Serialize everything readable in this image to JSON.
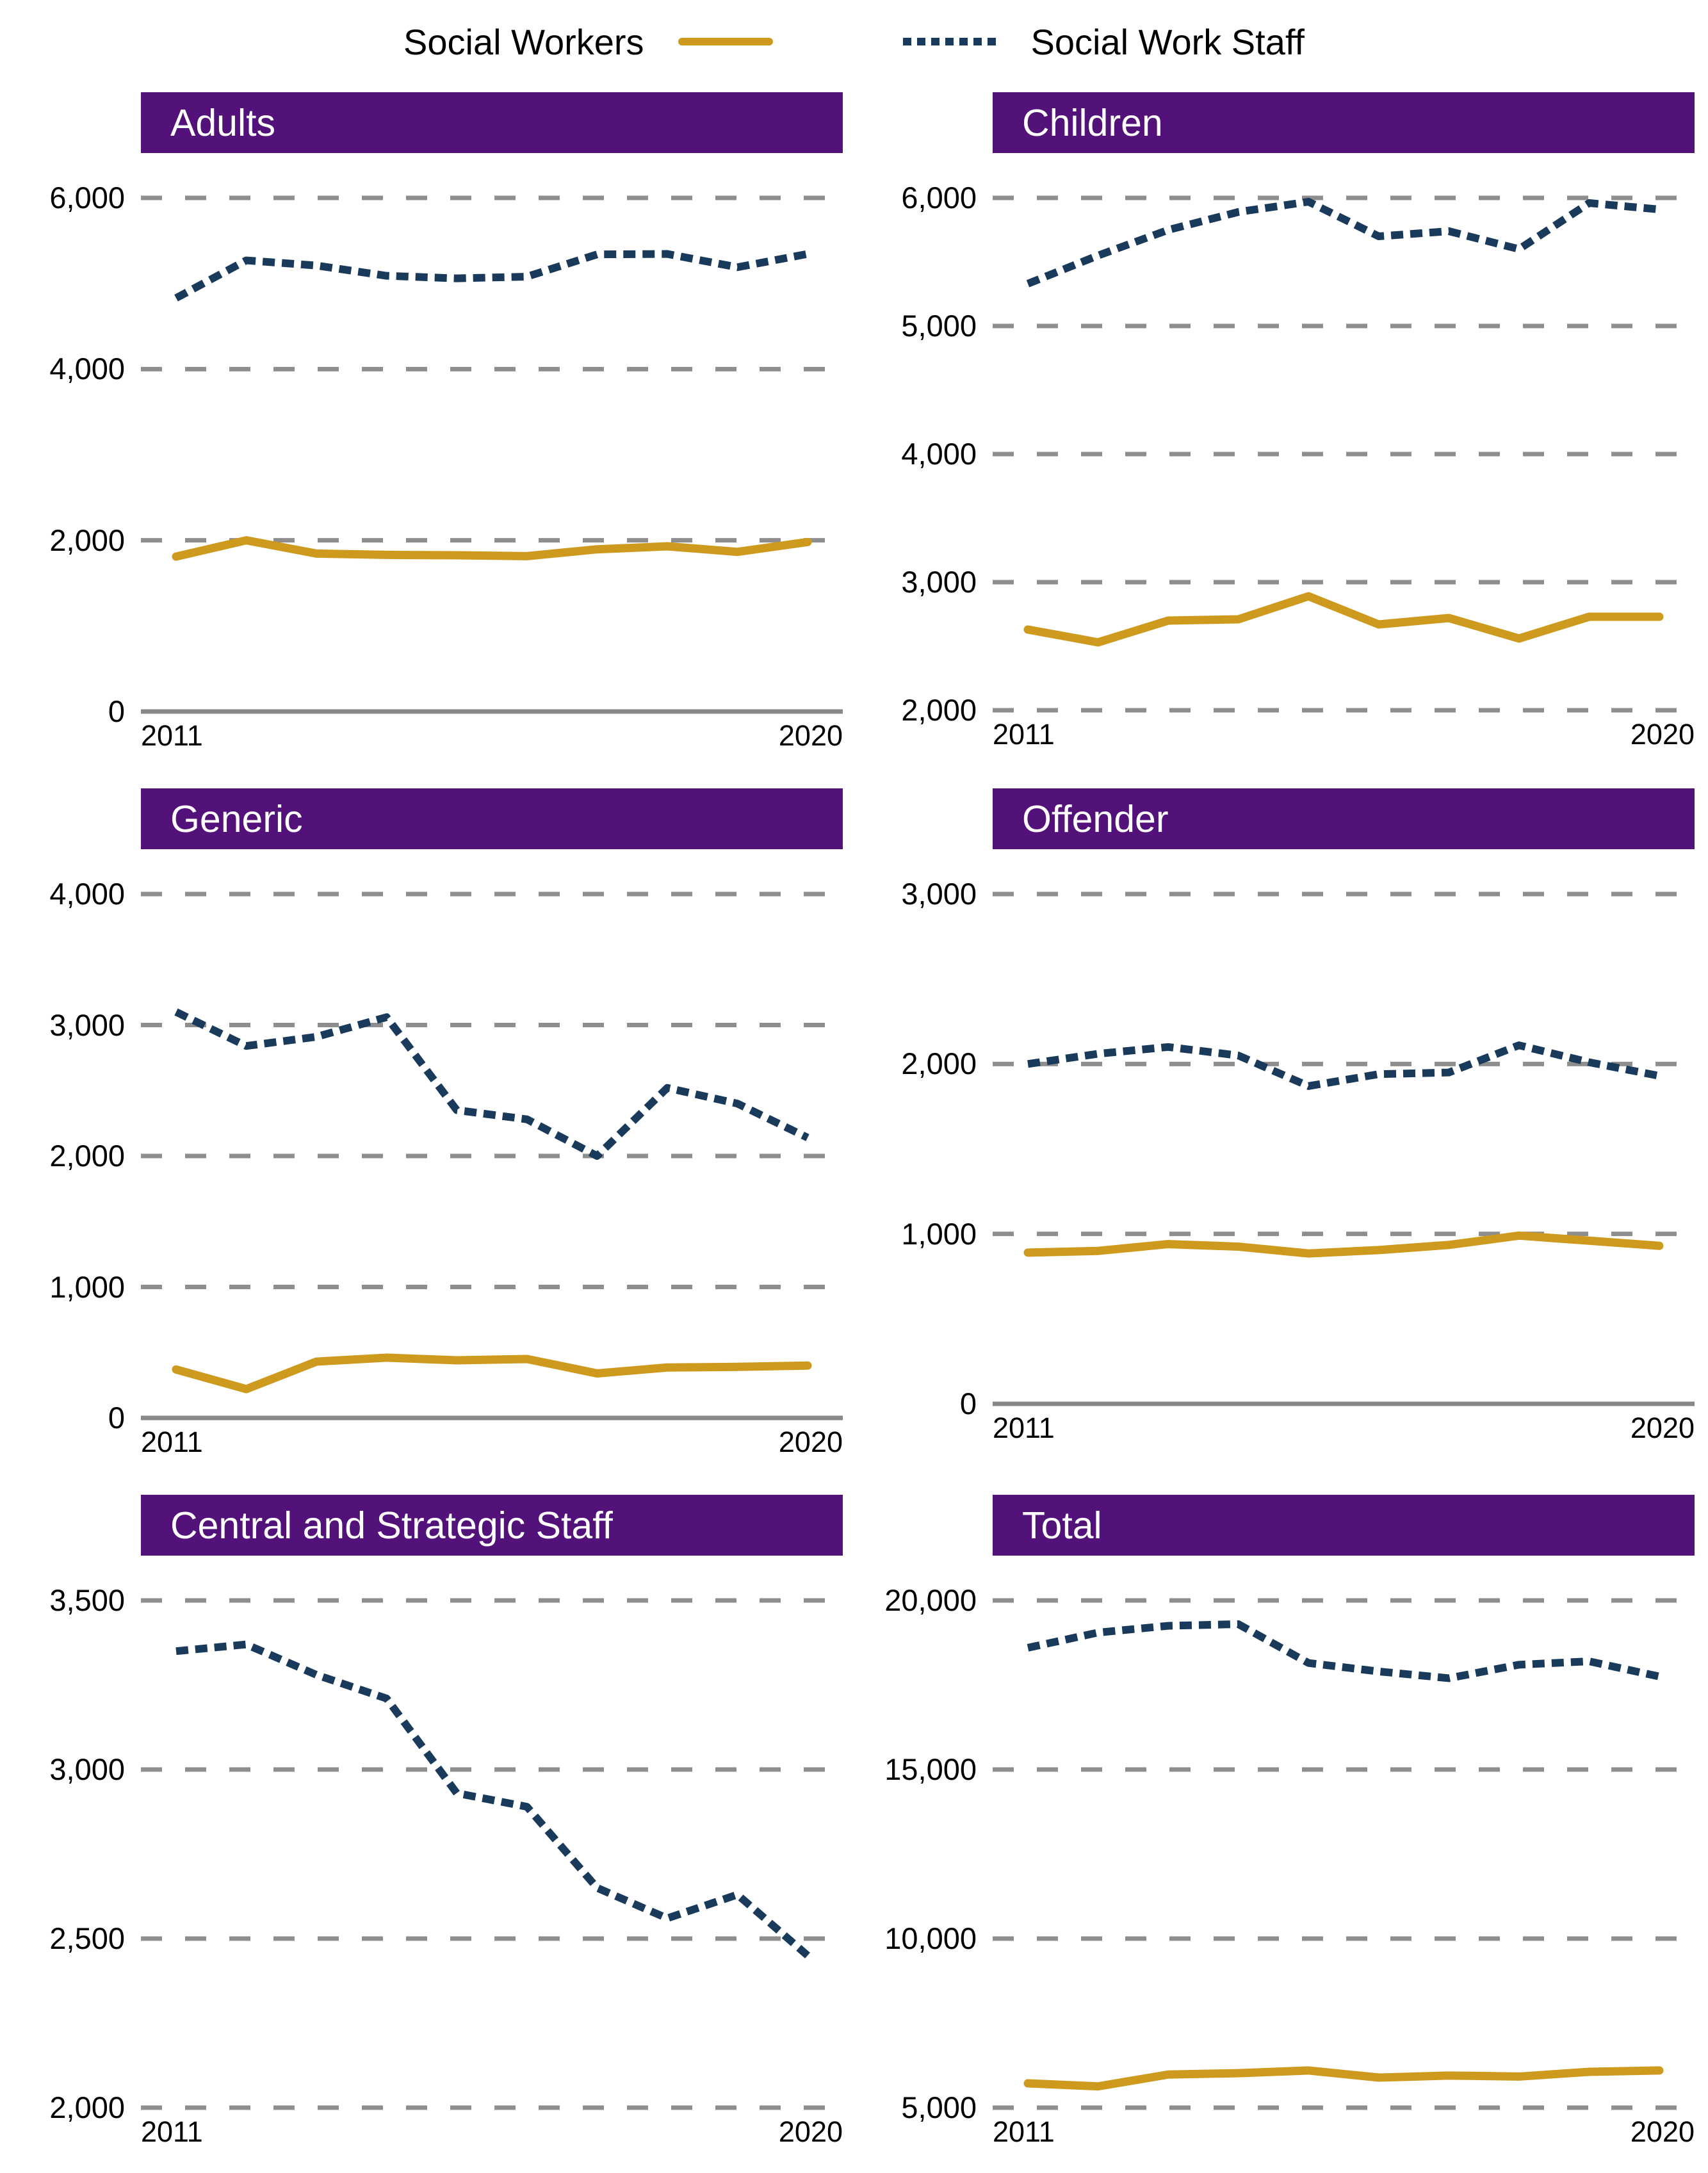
{
  "legend": {
    "items": [
      {
        "label": "Social Workers",
        "series_key": "workers",
        "color": "#CE9A1E",
        "style": "solid"
      },
      {
        "label": "Social Work Staff",
        "series_key": "staff",
        "color": "#1A3A5C",
        "style": "dashed"
      }
    ]
  },
  "x_axis": {
    "start_label": "2011",
    "end_label": "2020"
  },
  "colors": {
    "header_purple": "#52127A",
    "gridline_gray": "#8E8E8E",
    "axis_gray": "#888888",
    "workers_gold": "#CE9A1E",
    "staff_navy": "#1A3A5C",
    "title_text": "#ffffff",
    "tick_text": "#000000"
  },
  "chart_data": [
    {
      "type": "line",
      "title": "Adults",
      "x": [
        2011,
        2012,
        2013,
        2014,
        2015,
        2016,
        2017,
        2018,
        2019,
        2020
      ],
      "x_tick_labels": [
        "2011",
        "2020"
      ],
      "ylim": [
        0,
        6000
      ],
      "yticks": {
        "values": [
          6000,
          4000,
          2000,
          0
        ],
        "labels": [
          "6,000",
          "4,000",
          "2,000",
          "0"
        ]
      },
      "baseline_solid": true,
      "grid": "dashed-horizontal",
      "series": [
        {
          "key": "staff",
          "name": "Social Work Staff",
          "values": [
            4830,
            5270,
            5210,
            5090,
            5060,
            5080,
            5340,
            5345,
            5190,
            5345
          ]
        },
        {
          "key": "workers",
          "name": "Social Workers",
          "values": [
            1810,
            2000,
            1845,
            1830,
            1825,
            1815,
            1895,
            1930,
            1865,
            1980
          ]
        }
      ]
    },
    {
      "type": "line",
      "title": "Children",
      "x": [
        2011,
        2012,
        2013,
        2014,
        2015,
        2016,
        2017,
        2018,
        2019,
        2020
      ],
      "x_tick_labels": [
        "2011",
        "2020"
      ],
      "ylim": [
        2000,
        6000
      ],
      "yticks": {
        "values": [
          6000,
          5000,
          4000,
          3000,
          2000
        ],
        "labels": [
          "6,000",
          "5,000",
          "4,000",
          "3,000",
          "2,000"
        ]
      },
      "baseline_solid": false,
      "grid": "dashed-horizontal",
      "series": [
        {
          "key": "staff",
          "name": "Social Work Staff",
          "values": [
            5330,
            5550,
            5750,
            5890,
            5970,
            5700,
            5740,
            5600,
            5960,
            5910
          ]
        },
        {
          "key": "workers",
          "name": "Social Workers",
          "values": [
            2630,
            2530,
            2700,
            2710,
            2890,
            2670,
            2720,
            2560,
            2730,
            2730
          ]
        }
      ]
    },
    {
      "type": "line",
      "title": "Generic",
      "x": [
        2011,
        2012,
        2013,
        2014,
        2015,
        2016,
        2017,
        2018,
        2019,
        2020
      ],
      "x_tick_labels": [
        "2011",
        "2020"
      ],
      "ylim": [
        0,
        4000
      ],
      "yticks": {
        "values": [
          4000,
          3000,
          2000,
          1000,
          0
        ],
        "labels": [
          "4,000",
          "3,000",
          "2,000",
          "1,000",
          "0"
        ]
      },
      "baseline_solid": true,
      "grid": "dashed-horizontal",
      "series": [
        {
          "key": "staff",
          "name": "Social Work Staff",
          "values": [
            3100,
            2840,
            2910,
            3060,
            2350,
            2280,
            2000,
            2520,
            2400,
            2140
          ]
        },
        {
          "key": "workers",
          "name": "Social Workers",
          "values": [
            370,
            220,
            430,
            460,
            440,
            450,
            340,
            385,
            390,
            400
          ]
        }
      ]
    },
    {
      "type": "line",
      "title": "Offender",
      "x": [
        2011,
        2012,
        2013,
        2014,
        2015,
        2016,
        2017,
        2018,
        2019,
        2020
      ],
      "x_tick_labels": [
        "2011",
        "2020"
      ],
      "ylim": [
        0,
        3000
      ],
      "yticks": {
        "values": [
          3000,
          2000,
          1000,
          0
        ],
        "labels": [
          "3,000",
          "2,000",
          "1,000",
          "0"
        ]
      },
      "baseline_solid": true,
      "grid": "dashed-horizontal",
      "series": [
        {
          "key": "staff",
          "name": "Social Work Staff",
          "values": [
            2000,
            2060,
            2100,
            2050,
            1870,
            1940,
            1950,
            2110,
            2010,
            1930
          ]
        },
        {
          "key": "workers",
          "name": "Social Workers",
          "values": [
            890,
            900,
            940,
            925,
            885,
            905,
            935,
            990,
            960,
            930
          ]
        }
      ]
    },
    {
      "type": "line",
      "title": "Central and Strategic Staff",
      "x": [
        2011,
        2012,
        2013,
        2014,
        2015,
        2016,
        2017,
        2018,
        2019,
        2020
      ],
      "x_tick_labels": [
        "2011",
        "2020"
      ],
      "ylim": [
        2000,
        3500
      ],
      "yticks": {
        "values": [
          3500,
          3000,
          2500,
          2000
        ],
        "labels": [
          "3,500",
          "3,000",
          "2,500",
          "2,000"
        ]
      },
      "baseline_solid": false,
      "grid": "dashed-horizontal",
      "series": [
        {
          "key": "staff",
          "name": "Social Work Staff",
          "values": [
            3350,
            3370,
            3280,
            3210,
            2930,
            2890,
            2650,
            2560,
            2630,
            2450
          ]
        }
      ]
    },
    {
      "type": "line",
      "title": "Total",
      "x": [
        2011,
        2012,
        2013,
        2014,
        2015,
        2016,
        2017,
        2018,
        2019,
        2020
      ],
      "x_tick_labels": [
        "2011",
        "2020"
      ],
      "ylim": [
        5000,
        20000
      ],
      "yticks": {
        "values": [
          20000,
          15000,
          10000,
          5000
        ],
        "labels": [
          "20,000",
          "15,000",
          "10,000",
          "5,000"
        ]
      },
      "baseline_solid": false,
      "grid": "dashed-horizontal",
      "series": [
        {
          "key": "staff",
          "name": "Social Work Staff",
          "values": [
            18600,
            19050,
            19250,
            19300,
            18150,
            17900,
            17700,
            18100,
            18200,
            17750
          ]
        },
        {
          "key": "workers",
          "name": "Social Workers",
          "values": [
            5720,
            5630,
            5980,
            6020,
            6100,
            5890,
            5950,
            5920,
            6060,
            6100
          ]
        }
      ]
    }
  ]
}
